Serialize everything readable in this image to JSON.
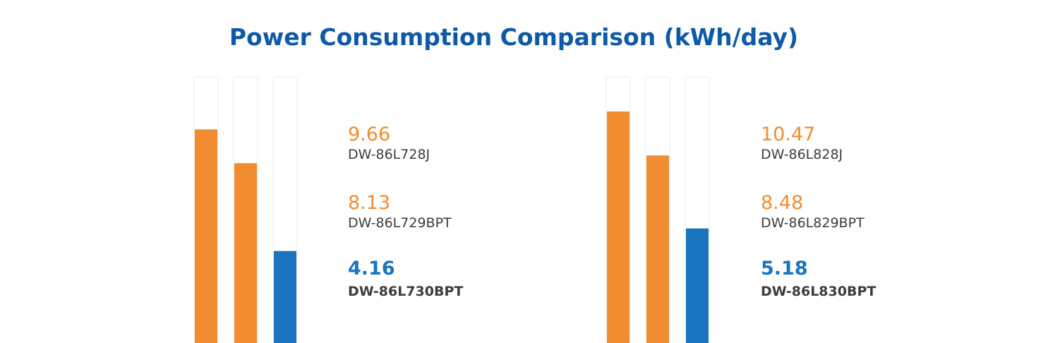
{
  "title": "Power Consumption Comparison (kWh/day)",
  "chart_data": [
    {
      "type": "bar",
      "categories": [
        "DW-86L728J",
        "DW-86L729BPT",
        "DW-86L730BPT"
      ],
      "values": [
        9.66,
        8.13,
        4.16
      ],
      "colors": [
        "#f28c30",
        "#f28c30",
        "#1a74bf"
      ],
      "ylim": [
        0,
        12
      ]
    },
    {
      "type": "bar",
      "categories": [
        "DW-86L828J",
        "DW-86L829BPT",
        "DW-86L830BPT"
      ],
      "values": [
        10.47,
        8.48,
        5.18
      ],
      "colors": [
        "#f28c30",
        "#f28c30",
        "#1a74bf"
      ],
      "ylim": [
        0,
        12
      ]
    }
  ]
}
